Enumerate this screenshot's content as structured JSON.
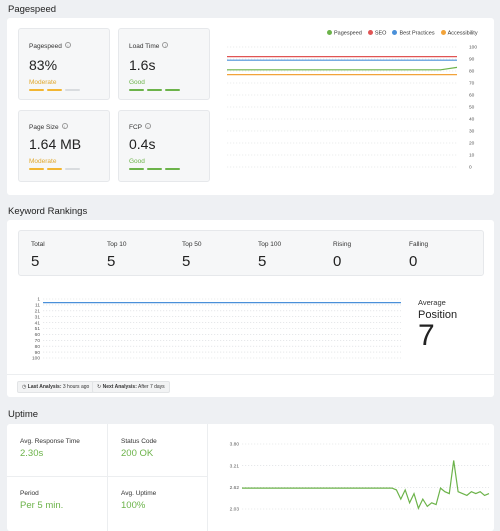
{
  "pagespeed": {
    "title": "Pagespeed",
    "metrics": [
      {
        "label": "Pagespeed",
        "value": "83%",
        "status": "Moderate",
        "status_color": "#e0a82e",
        "bar_colors": [
          "#f2b632",
          "#f2b632",
          "#d9dcdf"
        ]
      },
      {
        "label": "Load Time",
        "value": "1.6s",
        "status": "Good",
        "status_color": "#6cb34a",
        "bar_colors": [
          "#6cb34a",
          "#6cb34a",
          "#6cb34a"
        ]
      },
      {
        "label": "Page Size",
        "value": "1.64 MB",
        "status": "Moderate",
        "status_color": "#e0a82e",
        "bar_colors": [
          "#f2b632",
          "#f2b632",
          "#d9dcdf"
        ]
      },
      {
        "label": "FCP",
        "value": "0.4s",
        "status": "Good",
        "status_color": "#6cb34a",
        "bar_colors": [
          "#6cb34a",
          "#6cb34a",
          "#6cb34a"
        ]
      }
    ],
    "legend": [
      {
        "name": "Pagespeed",
        "color": "#6cb34a"
      },
      {
        "name": "SEO",
        "color": "#e05454"
      },
      {
        "name": "Best Practices",
        "color": "#4a90d9"
      },
      {
        "name": "Accessibility",
        "color": "#f2a33a"
      }
    ]
  },
  "keywords": {
    "title": "Keyword Rankings",
    "stats": [
      {
        "label": "Total",
        "value": "5"
      },
      {
        "label": "Top 10",
        "value": "5"
      },
      {
        "label": "Top 50",
        "value": "5"
      },
      {
        "label": "Top 100",
        "value": "5"
      },
      {
        "label": "Rising",
        "value": "0"
      },
      {
        "label": "Falling",
        "value": "0"
      }
    ],
    "average_label": "Average",
    "position_label": "Position",
    "average_value": "7",
    "last_analysis_label": "Last Analysis:",
    "last_analysis_value": "3 hours ago",
    "next_analysis_label": "Next Analysis:",
    "next_analysis_value": "After 7 days"
  },
  "uptime": {
    "title": "Uptime",
    "metrics": [
      {
        "label": "Avg. Response Time",
        "value": "2.30s"
      },
      {
        "label": "Status Code",
        "value": "200 OK"
      },
      {
        "label": "Period",
        "value": "Per 5 min."
      },
      {
        "label": "Avg. Uptime",
        "value": "100%"
      }
    ]
  },
  "chart_data": [
    {
      "type": "line",
      "ylim": [
        0,
        100
      ],
      "y_ticks": [
        "100",
        "90",
        "80",
        "70",
        "60",
        "50",
        "40",
        "30",
        "20",
        "10",
        "0"
      ],
      "series": [
        {
          "name": "Pagespeed",
          "color": "#6cb34a",
          "values": [
            81,
            81,
            81,
            81,
            81,
            81,
            81,
            81,
            81,
            81,
            81,
            81,
            81,
            81,
            83
          ]
        },
        {
          "name": "SEO",
          "color": "#e05454",
          "values": [
            92,
            92,
            92,
            92,
            92,
            92,
            92,
            92,
            92,
            92,
            92,
            92,
            92,
            92,
            92
          ]
        },
        {
          "name": "Best Practices",
          "color": "#4a90d9",
          "values": [
            89,
            89,
            89,
            89,
            89,
            89,
            89,
            89,
            89,
            89,
            89,
            89,
            89,
            89,
            89
          ]
        },
        {
          "name": "Accessibility",
          "color": "#f2a33a",
          "values": [
            77,
            77,
            77,
            77,
            77,
            77,
            77,
            77,
            77,
            77,
            77,
            77,
            77,
            77,
            77
          ]
        }
      ]
    },
    {
      "type": "line",
      "y_ticks": [
        "1",
        "11",
        "21",
        "31",
        "41",
        "51",
        "60",
        "70",
        "80",
        "90",
        "100"
      ],
      "ylim": [
        1,
        100
      ],
      "series": [
        {
          "color": "#4a90d9",
          "values": [
            7,
            7,
            7,
            7,
            7,
            7,
            7,
            7,
            7,
            7
          ]
        }
      ]
    },
    {
      "type": "line",
      "y_ticks": [
        "3.80",
        "3.21",
        "2.62",
        "2.03"
      ],
      "ylim": [
        2.03,
        3.8
      ],
      "series": [
        {
          "color": "#6cb34a",
          "values": [
            2.6,
            2.6,
            2.6,
            2.6,
            2.6,
            2.6,
            2.6,
            2.6,
            2.6,
            2.6,
            2.6,
            2.6,
            2.6,
            2.6,
            2.6,
            2.6,
            2.6,
            2.6,
            2.6,
            2.6,
            2.6,
            2.6,
            2.6,
            2.6,
            2.6,
            2.6,
            2.6,
            2.6,
            2.6,
            2.6,
            2.6,
            2.6,
            2.6,
            2.6,
            2.6,
            2.55,
            2.3,
            2.55,
            2.2,
            2.45,
            2.05,
            2.3,
            2.1,
            2.2,
            2.15,
            2.6,
            2.5,
            2.45,
            3.35,
            2.5,
            2.45,
            2.4,
            2.5,
            2.45,
            2.5,
            2.4,
            2.45
          ]
        }
      ]
    }
  ]
}
